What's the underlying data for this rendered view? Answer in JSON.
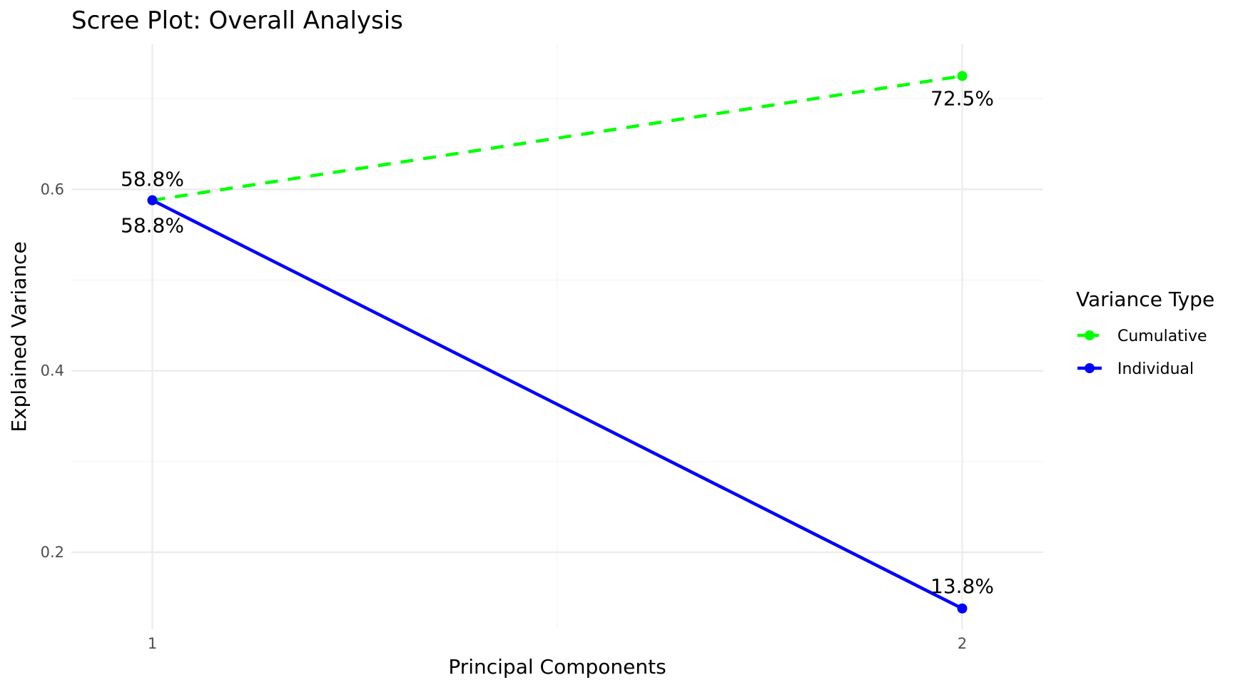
{
  "chart_data": {
    "type": "line",
    "title": "Scree Plot: Overall Analysis",
    "xlabel": "Principal Components",
    "ylabel": "Explained Variance",
    "x": [
      1,
      2
    ],
    "x_tick_labels": [
      "1",
      "2"
    ],
    "y_ticks": [
      0.2,
      0.4,
      0.6
    ],
    "y_tick_labels": [
      "0.2",
      "0.4",
      "0.6"
    ],
    "xlim": [
      0.9,
      2.1
    ],
    "ylim": [
      0.115,
      0.76
    ],
    "grid": true,
    "legend": {
      "title": "Variance Type",
      "placement": "right"
    },
    "series": [
      {
        "name": "Cumulative",
        "values": [
          0.588,
          0.725
        ],
        "labels": [
          "58.8%",
          "72.5%"
        ],
        "color": "#00ff00",
        "line_style": "dashed"
      },
      {
        "name": "Individual",
        "values": [
          0.588,
          0.138
        ],
        "labels": [
          "58.8%",
          "13.8%"
        ],
        "color": "#0000ff",
        "line_style": "solid"
      }
    ]
  }
}
